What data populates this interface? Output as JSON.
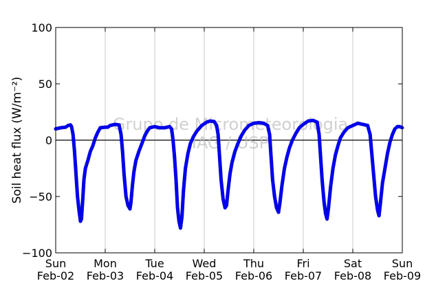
{
  "chart_data": {
    "type": "scatter",
    "ylabel": "Soil heat flux (W/m⁻²)",
    "ylim": [
      -100,
      100
    ],
    "yticks": [
      -100,
      -50,
      0,
      50,
      100
    ],
    "xlim": [
      0,
      7
    ],
    "x_units": "days from Sun Feb-02 00:00",
    "xtick_labels": [
      {
        "day": "Sun",
        "date": "Feb-02"
      },
      {
        "day": "Mon",
        "date": "Feb-03"
      },
      {
        "day": "Tue",
        "date": "Feb-04"
      },
      {
        "day": "Wed",
        "date": "Feb-05"
      },
      {
        "day": "Thu",
        "date": "Feb-06"
      },
      {
        "day": "Fri",
        "date": "Feb-07"
      },
      {
        "day": "Sat",
        "date": "Feb-08"
      },
      {
        "day": "Sun",
        "date": "Feb-09"
      }
    ],
    "grid": "vertical",
    "zero_line": true,
    "watermark": [
      "Grupo de Micrometeorologia",
      "IAG / USP"
    ],
    "series_color": "#0000ff",
    "series": [
      {
        "points": [
          [
            0.0,
            10
          ],
          [
            0.1,
            11
          ],
          [
            0.2,
            11.5
          ],
          [
            0.25,
            13
          ],
          [
            0.3,
            13.5
          ],
          [
            0.32,
            12
          ],
          [
            0.35,
            5
          ],
          [
            0.38,
            -10
          ],
          [
            0.41,
            -30
          ],
          [
            0.44,
            -50
          ],
          [
            0.47,
            -62
          ],
          [
            0.5,
            -72
          ],
          [
            0.52,
            -70
          ],
          [
            0.55,
            -50
          ],
          [
            0.57,
            -35
          ],
          [
            0.6,
            -25
          ],
          [
            0.65,
            -18
          ],
          [
            0.7,
            -10
          ],
          [
            0.75,
            -5
          ],
          [
            0.8,
            2
          ],
          [
            0.85,
            7
          ],
          [
            0.9,
            11
          ],
          [
            1.0,
            11.5
          ],
          [
            1.05,
            11.5
          ],
          [
            1.1,
            13
          ],
          [
            1.2,
            14
          ],
          [
            1.28,
            13.5
          ],
          [
            1.32,
            5
          ],
          [
            1.35,
            -10
          ],
          [
            1.38,
            -30
          ],
          [
            1.42,
            -50
          ],
          [
            1.46,
            -58
          ],
          [
            1.5,
            -61
          ],
          [
            1.52,
            -55
          ],
          [
            1.55,
            -40
          ],
          [
            1.58,
            -28
          ],
          [
            1.62,
            -18
          ],
          [
            1.68,
            -10
          ],
          [
            1.75,
            -2
          ],
          [
            1.8,
            4
          ],
          [
            1.85,
            8
          ],
          [
            1.9,
            11
          ],
          [
            2.0,
            12
          ],
          [
            2.05,
            11.5
          ],
          [
            2.1,
            11
          ],
          [
            2.2,
            11
          ],
          [
            2.3,
            12
          ],
          [
            2.34,
            10
          ],
          [
            2.37,
            0
          ],
          [
            2.4,
            -15
          ],
          [
            2.43,
            -35
          ],
          [
            2.46,
            -60
          ],
          [
            2.49,
            -72
          ],
          [
            2.52,
            -78
          ],
          [
            2.55,
            -68
          ],
          [
            2.58,
            -45
          ],
          [
            2.62,
            -25
          ],
          [
            2.67,
            -12
          ],
          [
            2.72,
            -3
          ],
          [
            2.78,
            3
          ],
          [
            2.85,
            8
          ],
          [
            2.95,
            13
          ],
          [
            3.05,
            16
          ],
          [
            3.12,
            17
          ],
          [
            3.2,
            16.5
          ],
          [
            3.25,
            13
          ],
          [
            3.28,
            5
          ],
          [
            3.31,
            -15
          ],
          [
            3.34,
            -35
          ],
          [
            3.38,
            -52
          ],
          [
            3.42,
            -60
          ],
          [
            3.45,
            -58
          ],
          [
            3.48,
            -45
          ],
          [
            3.52,
            -30
          ],
          [
            3.56,
            -20
          ],
          [
            3.62,
            -10
          ],
          [
            3.68,
            -3
          ],
          [
            3.75,
            4
          ],
          [
            3.82,
            9
          ],
          [
            3.9,
            13
          ],
          [
            4.0,
            15
          ],
          [
            4.1,
            15.5
          ],
          [
            4.2,
            15
          ],
          [
            4.28,
            13
          ],
          [
            4.32,
            5
          ],
          [
            4.35,
            -15
          ],
          [
            4.38,
            -35
          ],
          [
            4.42,
            -50
          ],
          [
            4.46,
            -60
          ],
          [
            4.5,
            -64
          ],
          [
            4.53,
            -55
          ],
          [
            4.57,
            -40
          ],
          [
            4.62,
            -25
          ],
          [
            4.67,
            -15
          ],
          [
            4.72,
            -7
          ],
          [
            4.78,
            0
          ],
          [
            4.85,
            6
          ],
          [
            4.92,
            11
          ],
          [
            5.0,
            14
          ],
          [
            5.1,
            17
          ],
          [
            5.2,
            17.5
          ],
          [
            5.28,
            16
          ],
          [
            5.32,
            5
          ],
          [
            5.35,
            -15
          ],
          [
            5.38,
            -35
          ],
          [
            5.42,
            -55
          ],
          [
            5.45,
            -65
          ],
          [
            5.48,
            -70
          ],
          [
            5.51,
            -60
          ],
          [
            5.55,
            -42
          ],
          [
            5.6,
            -25
          ],
          [
            5.65,
            -13
          ],
          [
            5.7,
            -5
          ],
          [
            5.75,
            2
          ],
          [
            5.82,
            7
          ],
          [
            5.9,
            11
          ],
          [
            6.0,
            13
          ],
          [
            6.1,
            15
          ],
          [
            6.2,
            14
          ],
          [
            6.3,
            13
          ],
          [
            6.35,
            5
          ],
          [
            6.38,
            -10
          ],
          [
            6.42,
            -30
          ],
          [
            6.46,
            -50
          ],
          [
            6.5,
            -62
          ],
          [
            6.53,
            -67
          ],
          [
            6.56,
            -55
          ],
          [
            6.6,
            -38
          ],
          [
            6.65,
            -25
          ],
          [
            6.7,
            -12
          ],
          [
            6.75,
            -2
          ],
          [
            6.8,
            5
          ],
          [
            6.85,
            10
          ],
          [
            6.9,
            12
          ],
          [
            6.95,
            12
          ],
          [
            7.0,
            11
          ]
        ]
      }
    ]
  }
}
